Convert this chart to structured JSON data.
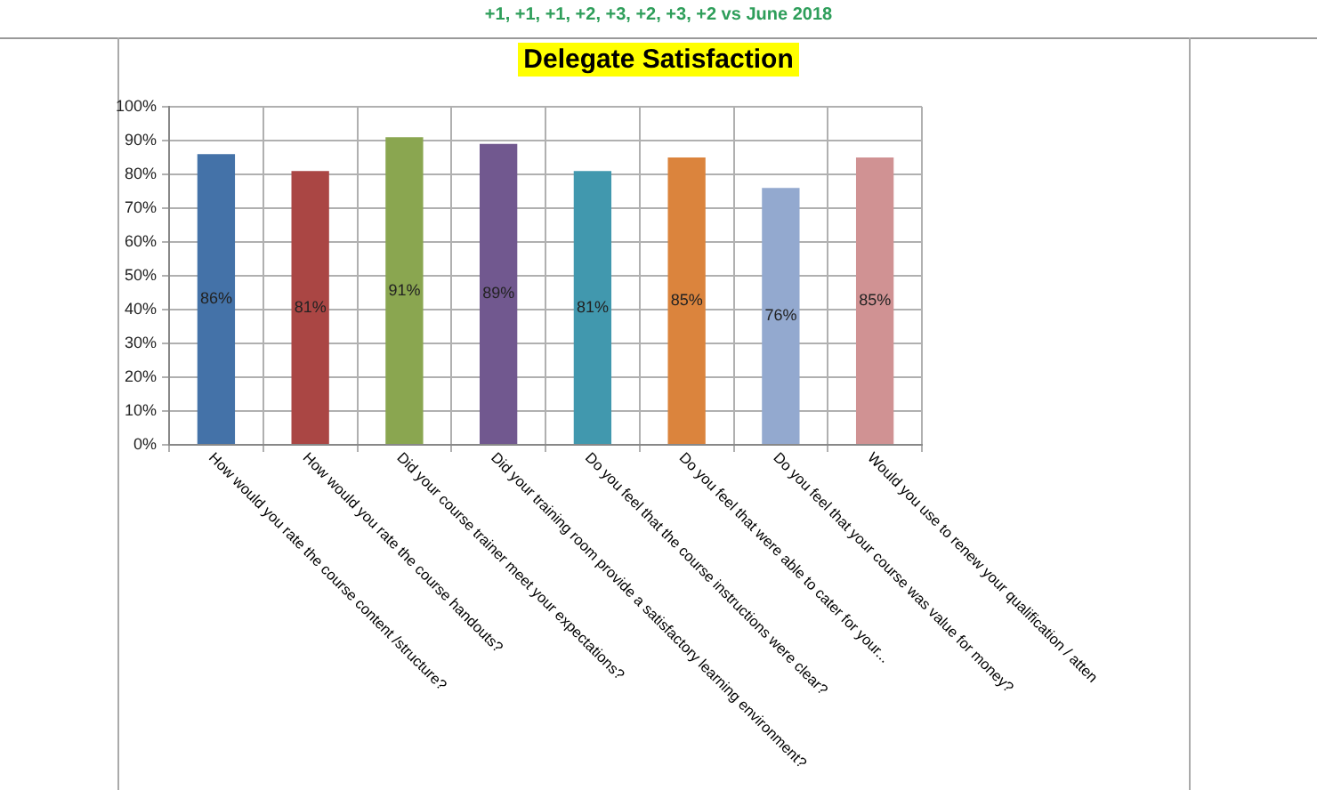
{
  "chart_data": {
    "type": "bar",
    "title": "Delegate Satisfaction",
    "subtitle": "+1, +1, +1, +2, +3, +2, +3, +2 vs June 2018",
    "categories": [
      "How would you rate the course content /structure?",
      "How would you rate the course handouts?",
      "Did your course trainer meet your expectations?",
      "Did your training room provide a satisfactory learning environment?",
      "Do you feel that the course instructions were clear?",
      "Do you feel that were able to cater for your...",
      "Do you feel that your course was value for money?",
      "Would you use to renew your qualification / atten"
    ],
    "values": [
      86,
      81,
      91,
      89,
      81,
      85,
      76,
      85
    ],
    "colors": [
      "#4472a8",
      "#aa4644",
      "#8aa650",
      "#71588f",
      "#4198ae",
      "#db843d",
      "#93a9cf",
      "#d09293"
    ],
    "value_labels": [
      "86%",
      "81%",
      "91%",
      "89%",
      "81%",
      "85%",
      "76%",
      "85%"
    ],
    "ylim": [
      0,
      100
    ],
    "yticks": [
      {
        "value": 0,
        "label": "0%"
      },
      {
        "value": 10,
        "label": "10%"
      },
      {
        "value": 20,
        "label": "20%"
      },
      {
        "value": 30,
        "label": "30%"
      },
      {
        "value": 40,
        "label": "40%"
      },
      {
        "value": 50,
        "label": "50%"
      },
      {
        "value": 60,
        "label": "60%"
      },
      {
        "value": 70,
        "label": "70%"
      },
      {
        "value": 80,
        "label": "80%"
      },
      {
        "value": 90,
        "label": "90%"
      },
      {
        "value": 100,
        "label": "100%"
      }
    ],
    "grid": true
  }
}
